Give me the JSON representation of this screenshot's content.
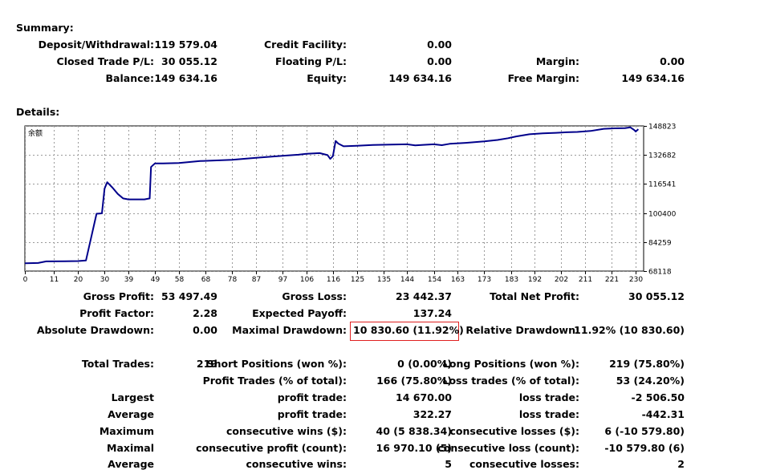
{
  "summary": {
    "title": "Summary:",
    "deposit_label": "Deposit/Withdrawal:",
    "deposit_value": "119 579.04",
    "credit_label": "Credit Facility:",
    "credit_value": "0.00",
    "closed_pl_label": "Closed Trade P/L:",
    "closed_pl_value": "30 055.12",
    "floating_label": "Floating P/L:",
    "floating_value": "0.00",
    "margin_label": "Margin:",
    "margin_value": "0.00",
    "balance_label": "Balance:",
    "balance_value": "149 634.16",
    "equity_label": "Equity:",
    "equity_value": "149 634.16",
    "free_margin_label": "Free Margin:",
    "free_margin_value": "149 634.16"
  },
  "details": {
    "title": "Details:"
  },
  "chart_data": {
    "type": "line",
    "label": "余额",
    "ylim": [
      68118,
      148823
    ],
    "y_ticks": [
      148823,
      132682,
      116541,
      100400,
      84259,
      68118
    ],
    "xlim": [
      0,
      233
    ],
    "x_ticks": [
      0,
      11,
      20,
      30,
      39,
      49,
      58,
      68,
      78,
      87,
      97,
      106,
      116,
      125,
      135,
      144,
      154,
      163,
      173,
      183,
      192,
      202,
      211,
      221,
      230
    ],
    "grid": true,
    "line_color": "#00008b",
    "series": [
      {
        "x": [
          0,
          5,
          8,
          15,
          20,
          23,
          25,
          27,
          29,
          30,
          31,
          33,
          35,
          37,
          39,
          42,
          45,
          47,
          47.5,
          49,
          52,
          58,
          66,
          78,
          88,
          97,
          103,
          106,
          111,
          114,
          115,
          116,
          117,
          118,
          120,
          125,
          131,
          138,
          144,
          147,
          150,
          154,
          157,
          160,
          166,
          173,
          178,
          182,
          185,
          190,
          195,
          200,
          204,
          208,
          213,
          218,
          222,
          226,
          228,
          229.5,
          230,
          231
        ],
        "y": [
          72500,
          72600,
          73500,
          73600,
          73700,
          74000,
          87000,
          100000,
          100200,
          114000,
          117500,
          114500,
          111000,
          108500,
          108000,
          108000,
          108000,
          108500,
          126000,
          128000,
          128000,
          128200,
          129300,
          130000,
          131200,
          132200,
          132800,
          133300,
          133700,
          132600,
          130500,
          132000,
          140500,
          139000,
          137500,
          137800,
          138200,
          138500,
          138600,
          138000,
          138300,
          138600,
          138100,
          138900,
          139400,
          140200,
          141000,
          142000,
          143000,
          144200,
          144700,
          145000,
          145300,
          145500,
          146000,
          147200,
          147500,
          147600,
          148000,
          146500,
          145700,
          147000
        ]
      }
    ]
  },
  "stats": {
    "gross_profit_label": "Gross Profit:",
    "gross_profit_value": "53 497.49",
    "gross_loss_label": "Gross Loss:",
    "gross_loss_value": "23 442.37",
    "total_net_label": "Total Net Profit:",
    "total_net_value": "30 055.12",
    "profit_factor_label": "Profit Factor:",
    "profit_factor_value": "2.28",
    "expected_payoff_label": "Expected Payoff:",
    "expected_payoff_value": "137.24",
    "abs_dd_label": "Absolute Drawdown:",
    "abs_dd_value": "0.00",
    "max_dd_label": "Maximal Drawdown:",
    "max_dd_value": "10 830.60 (11.92%)",
    "rel_dd_label": "Relative Drawdown:",
    "rel_dd_value": "11.92% (10 830.60)"
  },
  "trades": {
    "total_label": "Total Trades:",
    "total_value": "219",
    "short_label": "Short Positions (won %):",
    "short_value": "0 (0.00%)",
    "long_label": "Long Positions (won %):",
    "long_value": "219 (75.80%)",
    "profit_trades_label": "Profit Trades (% of total):",
    "profit_trades_value": "166 (75.80%)",
    "loss_trades_label": "Loss trades (% of total):",
    "loss_trades_value": "53 (24.20%)",
    "largest_label": "Largest",
    "largest_profit_label": "profit trade:",
    "largest_profit_value": "14 670.00",
    "largest_loss_label": "loss trade:",
    "largest_loss_value": "-2 506.50",
    "average_label": "Average",
    "average_profit_label": "profit trade:",
    "average_profit_value": "322.27",
    "average_loss_label": "loss trade:",
    "average_loss_value": "-442.31",
    "maximum_label": "Maximum",
    "max_cons_wins_label": "consecutive wins ($):",
    "max_cons_wins_value": "40 (5 838.34)",
    "max_cons_losses_label": "consecutive losses ($):",
    "max_cons_losses_value": "6 (-10 579.80)",
    "maximal_label": "Maximal",
    "maximal_cons_profit_label": "consecutive profit (count):",
    "maximal_cons_profit_value": "16 970.10 (5)",
    "maximal_cons_loss_label": "consecutive loss (count):",
    "maximal_cons_loss_value": "-10 579.80 (6)",
    "average2_label": "Average",
    "avg_cons_wins_label": "consecutive wins:",
    "avg_cons_wins_value": "5",
    "avg_cons_losses_label": "consecutive losses:",
    "avg_cons_losses_value": "2"
  }
}
